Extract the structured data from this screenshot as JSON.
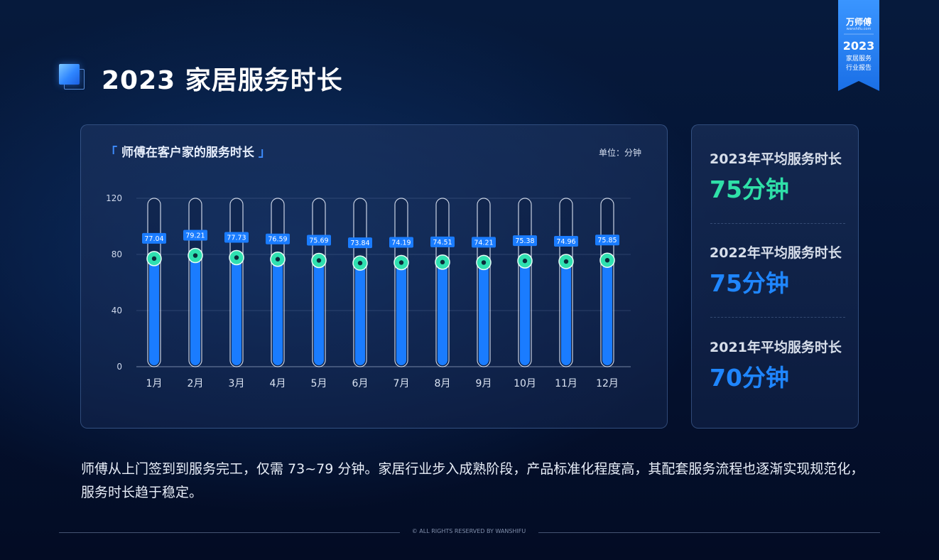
{
  "header": {
    "title": "2023 家居服务时长"
  },
  "badge": {
    "brand": "万师傅",
    "brand_sub": "wanshifu.com",
    "year": "2023",
    "line1": "家居服务",
    "line2": "行业报告"
  },
  "chart_panel": {
    "title_open": "「",
    "title": "师傅在客户家的服务时长",
    "title_close": "」",
    "unit": "单位：分钟"
  },
  "chart_data": {
    "type": "bar",
    "categories": [
      "1月",
      "2月",
      "3月",
      "4月",
      "5月",
      "6月",
      "7月",
      "8月",
      "9月",
      "10月",
      "11月",
      "12月"
    ],
    "values": [
      77.04,
      79.21,
      77.73,
      76.59,
      75.69,
      73.84,
      74.19,
      74.51,
      74.21,
      75.38,
      74.96,
      75.85
    ],
    "ylim": [
      0,
      120
    ],
    "yticks": [
      0,
      40,
      80,
      120
    ],
    "grid": true,
    "colors": {
      "bar": "#1a7cff",
      "marker": "#2fe0b0",
      "label_bg": "#1a7cff"
    }
  },
  "stats": [
    {
      "label": "2023年平均服务时长",
      "value": "75分钟",
      "color": "#2fe0a8"
    },
    {
      "label": "2022年平均服务时长",
      "value": "75分钟",
      "color": "#1f86ff"
    },
    {
      "label": "2021年平均服务时长",
      "value": "70分钟",
      "color": "#1f86ff"
    }
  ],
  "description": "师傅从上门签到到服务完工，仅需 73~79 分钟。家居行业步入成熟阶段，产品标准化程度高，其配套服务流程也逐渐实现规范化，服务时长趋于稳定。",
  "footer": {
    "copyright": "© ALL RIGHTS RESERVED BY WANSHIFU"
  }
}
